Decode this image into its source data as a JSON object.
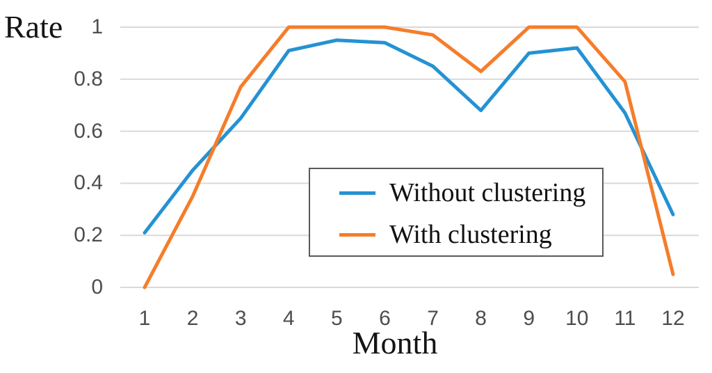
{
  "chart_data": {
    "type": "line",
    "title": "",
    "xlabel": "Month",
    "ylabel": "Rate",
    "x": [
      1,
      2,
      3,
      4,
      5,
      6,
      7,
      8,
      9,
      10,
      11,
      12
    ],
    "series": [
      {
        "name": "Without clustering",
        "color": "#2492d3",
        "values": [
          0.21,
          0.45,
          0.65,
          0.91,
          0.95,
          0.94,
          0.85,
          0.68,
          0.9,
          0.92,
          0.67,
          0.28
        ]
      },
      {
        "name": "With clustering",
        "color": "#f57d2b",
        "values": [
          0.0,
          0.35,
          0.77,
          1.0,
          1.0,
          1.0,
          0.97,
          0.83,
          1.0,
          1.0,
          0.79,
          0.05
        ]
      }
    ],
    "ylim": [
      0,
      1
    ],
    "y_ticks": [
      {
        "label": "1",
        "value": 1.0
      },
      {
        "label": "0.8",
        "value": 0.8
      },
      {
        "label": "0.6",
        "value": 0.6
      },
      {
        "label": "0.4",
        "value": 0.4
      },
      {
        "label": "0.2",
        "value": 0.2
      },
      {
        "label": "0",
        "value": 0.0
      }
    ],
    "grid": "horizontal",
    "grid_color": "#d9d9d9",
    "tick_text_color": "#4d4d4d",
    "legend_position": "inside-center-right",
    "legend_border_color": "#595959"
  }
}
